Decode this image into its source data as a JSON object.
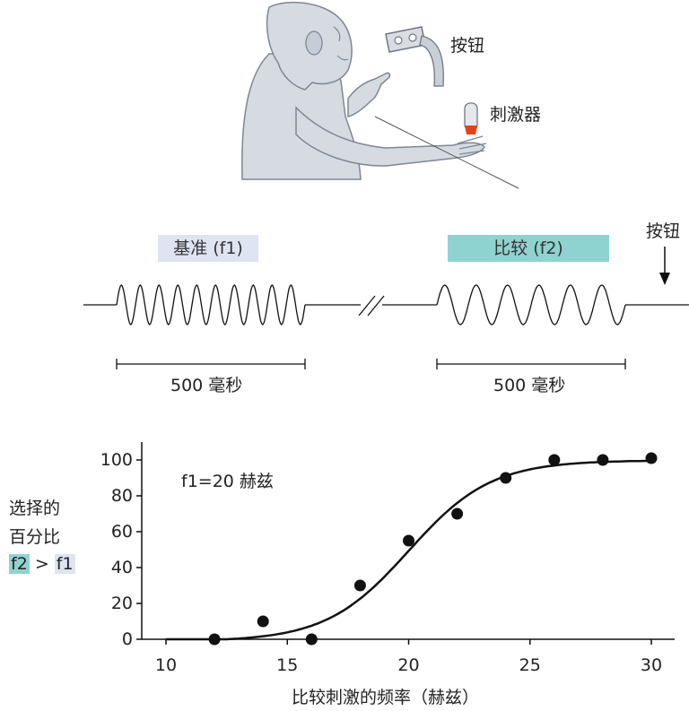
{
  "colors": {
    "base_box": "#dfe4f3",
    "compare_box": "#8fd3d1",
    "monkey_fill": "#d6dbe2",
    "monkey_stroke": "#7d8793",
    "stimulator_tip": "#e0421b",
    "marker": "#111111"
  },
  "illustration": {
    "button_label": "按钮",
    "stimulator_label": "刺激器"
  },
  "timeline": {
    "base_label": "基准 (f1)",
    "compare_label": "比较 (f2)",
    "button_label": "按钮",
    "base_duration": "500 毫秒",
    "compare_duration": "500 毫秒"
  },
  "chart_data": {
    "type": "scatter",
    "annotation": "f1=20 赫兹",
    "xlabel": "比较刺激的频率（赫兹）",
    "ylabel_lines": [
      "选择的",
      "百分比"
    ],
    "ylabel_f2": "f2",
    "ylabel_gt": ">",
    "ylabel_f1": "f1",
    "xlim": [
      10,
      31
    ],
    "ylim": [
      0,
      100
    ],
    "x_ticks": [
      10,
      15,
      20,
      25,
      30
    ],
    "y_ticks": [
      0,
      20,
      40,
      60,
      80,
      100
    ],
    "points": [
      {
        "x": 12,
        "y": 0
      },
      {
        "x": 14,
        "y": 10
      },
      {
        "x": 16,
        "y": 0
      },
      {
        "x": 18,
        "y": 30
      },
      {
        "x": 20,
        "y": 55
      },
      {
        "x": 22,
        "y": 70
      },
      {
        "x": 24,
        "y": 90
      },
      {
        "x": 26,
        "y": 100
      },
      {
        "x": 28,
        "y": 100
      },
      {
        "x": 30,
        "y": 101
      }
    ],
    "fit_curve": "sigmoid"
  }
}
